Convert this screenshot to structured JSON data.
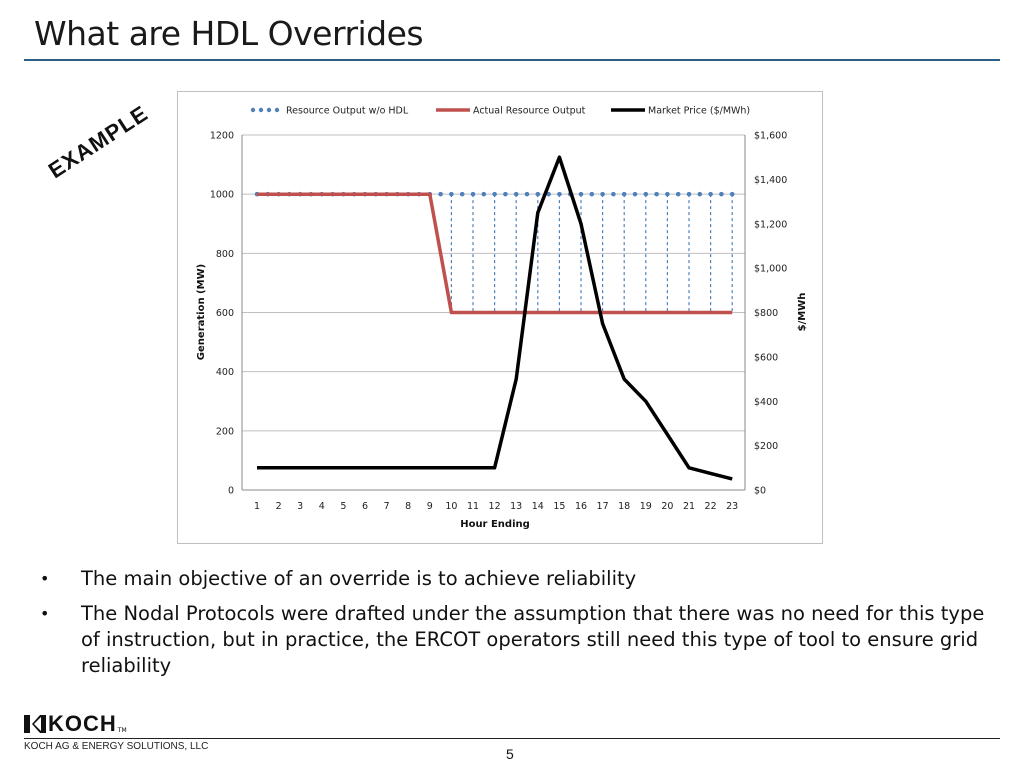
{
  "slide": {
    "title": "What are HDL Overrides",
    "stamp": "EXAMPLE",
    "bullets": [
      "The main objective of an override is to achieve reliability",
      "The Nodal Protocols were drafted under the assumption that there was no need for this type of instruction, but in practice, the ERCOT operators still need this type of tool to ensure grid reliability"
    ],
    "footer": {
      "logo_text": "KOCH",
      "logo_tm": "TM",
      "company": "KOCH AG & ENERGY SOLUTIONS, LLC",
      "page_number": "5"
    }
  },
  "chart_data": {
    "type": "line",
    "title": "",
    "xlabel": "Hour Ending",
    "ylabel": "Generation (MW)",
    "y2label": "$/MWh",
    "x": [
      1,
      2,
      3,
      4,
      5,
      6,
      7,
      8,
      9,
      10,
      11,
      12,
      13,
      14,
      15,
      16,
      17,
      18,
      19,
      20,
      21,
      22,
      23
    ],
    "ylim": [
      0,
      1200
    ],
    "yticks": [
      0,
      200,
      400,
      600,
      800,
      1000,
      1200
    ],
    "y2lim": [
      0,
      1600
    ],
    "y2ticks": [
      0,
      200,
      400,
      600,
      800,
      1000,
      1200,
      1400,
      1600
    ],
    "y2tick_labels": [
      "$0",
      "$200",
      "$400",
      "$600",
      "$800",
      "$1,000",
      "$1,200",
      "$1,400",
      "$1,600"
    ],
    "grid": true,
    "legend_position": "top",
    "series": [
      {
        "name": "Resource Output w/o HDL",
        "axis": "left",
        "style": "dotted",
        "color": "#4f81bd",
        "values": [
          1000,
          1000,
          1000,
          1000,
          1000,
          1000,
          1000,
          1000,
          1000,
          1000,
          1000,
          1000,
          1000,
          1000,
          1000,
          1000,
          1000,
          1000,
          1000,
          1000,
          1000,
          1000,
          1000
        ]
      },
      {
        "name": "Actual Resource Output",
        "axis": "left",
        "style": "solid",
        "color": "#c0504d",
        "values": [
          1000,
          1000,
          1000,
          1000,
          1000,
          1000,
          1000,
          1000,
          1000,
          600,
          600,
          600,
          600,
          600,
          600,
          600,
          600,
          600,
          600,
          600,
          600,
          600,
          600
        ]
      },
      {
        "name": "Market Price ($/MWh)",
        "axis": "right",
        "style": "solid",
        "color": "#000000",
        "values": [
          100,
          100,
          100,
          100,
          100,
          100,
          100,
          100,
          100,
          100,
          100,
          100,
          500,
          1250,
          1500,
          1200,
          750,
          500,
          400,
          250,
          100,
          75,
          50
        ]
      }
    ]
  }
}
